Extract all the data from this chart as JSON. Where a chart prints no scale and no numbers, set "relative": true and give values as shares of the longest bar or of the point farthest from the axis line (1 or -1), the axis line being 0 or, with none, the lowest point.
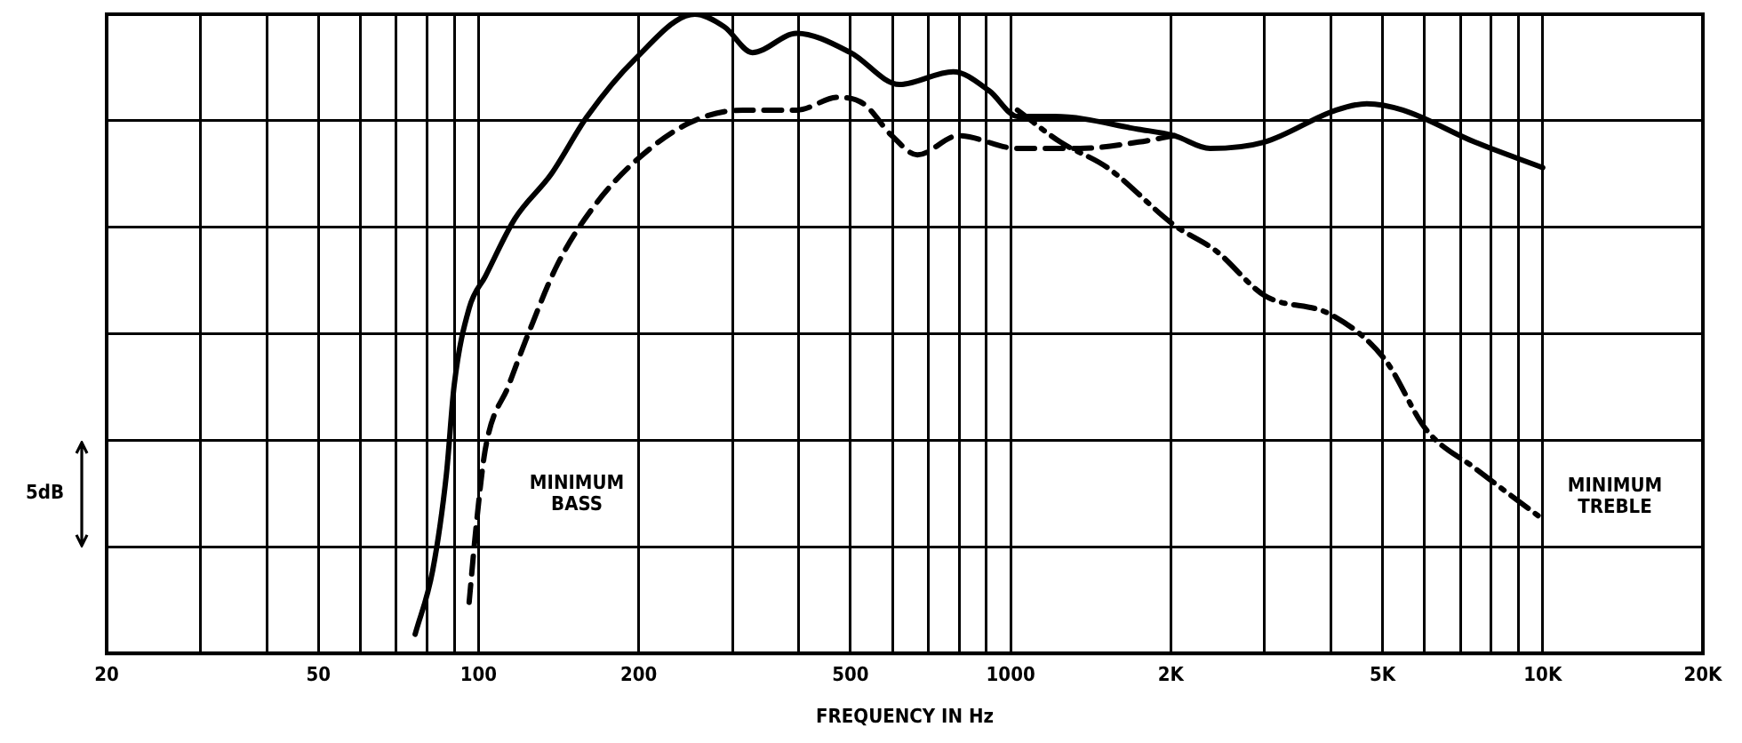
{
  "chart_data": {
    "type": "line",
    "xlabel": "FREQUENCY IN Hz",
    "log": "x",
    "relative": true,
    "grid": true,
    "legend": false,
    "marker": "none",
    "xlim": [
      20,
      20000
    ],
    "xticks": [
      20,
      {
        "value": 30,
        "label": null
      },
      {
        "value": 40,
        "label": null
      },
      50,
      {
        "value": 60,
        "label": null
      },
      {
        "value": 70,
        "label": null
      },
      {
        "value": 80,
        "label": null
      },
      {
        "value": 90,
        "label": null
      },
      100,
      200,
      {
        "value": 300,
        "label": null
      },
      {
        "value": 400,
        "label": null
      },
      500,
      {
        "value": 600,
        "label": null
      },
      {
        "value": 700,
        "label": null
      },
      {
        "value": 800,
        "label": null
      },
      {
        "value": 900,
        "label": null
      },
      1000,
      {
        "value": 2000,
        "label": "2K"
      },
      {
        "value": 3000,
        "label": null
      },
      {
        "value": 4000,
        "label": null
      },
      {
        "value": 5000,
        "label": "5K"
      },
      {
        "value": 6000,
        "label": null
      },
      {
        "value": 7000,
        "label": null
      },
      {
        "value": 8000,
        "label": null
      },
      {
        "value": 9000,
        "label": null
      },
      {
        "value": 10000,
        "label": "10K"
      },
      {
        "value": 20000,
        "label": "20K"
      }
    ],
    "series": [
      {
        "color": "#000000",
        "line_style": "solid",
        "x": [
          76,
          82,
          87,
          90,
          96,
          103,
          117,
          137,
          160,
          197,
          255,
          290,
          327,
          396,
          500,
          618,
          780,
          912,
          1030,
          1210,
          1740,
          2030,
          2370,
          3000,
          4090,
          4670,
          5460,
          7450,
          10000
        ],
        "values": [
          0.03,
          0.13,
          0.28,
          0.42,
          0.54,
          0.59,
          0.68,
          0.75,
          0.84,
          0.93,
          1.0,
          0.98,
          0.94,
          0.97,
          0.94,
          0.89,
          0.91,
          0.88,
          0.84,
          0.84,
          0.82,
          0.81,
          0.79,
          0.8,
          0.85,
          0.86,
          0.85,
          0.8,
          0.76
        ]
      },
      {
        "name": "MINIMUM BASS",
        "color": "#000000",
        "line_style": "dashed",
        "x": [
          96,
          99,
          103,
          114,
          124,
          141,
          165,
          197,
          249,
          314,
          396,
          474,
          529,
          598,
          668,
          798,
          1030,
          1350,
          1740,
          2030
        ],
        "values": [
          0.08,
          0.2,
          0.32,
          0.42,
          0.5,
          0.61,
          0.7,
          0.77,
          0.83,
          0.85,
          0.85,
          0.87,
          0.86,
          0.81,
          0.78,
          0.81,
          0.79,
          0.79,
          0.8,
          0.81
        ]
      },
      {
        "name": "MINIMUM TREBLE",
        "color": "#000000",
        "line_style": "dashdot",
        "x": [
          1030,
          1240,
          1520,
          2030,
          2430,
          3000,
          4000,
          5050,
          6040,
          7450,
          10000
        ],
        "values": [
          0.85,
          0.8,
          0.76,
          0.67,
          0.63,
          0.56,
          0.53,
          0.46,
          0.35,
          0.29,
          0.21
        ]
      }
    ],
    "annotations": [
      "5dB"
    ]
  }
}
